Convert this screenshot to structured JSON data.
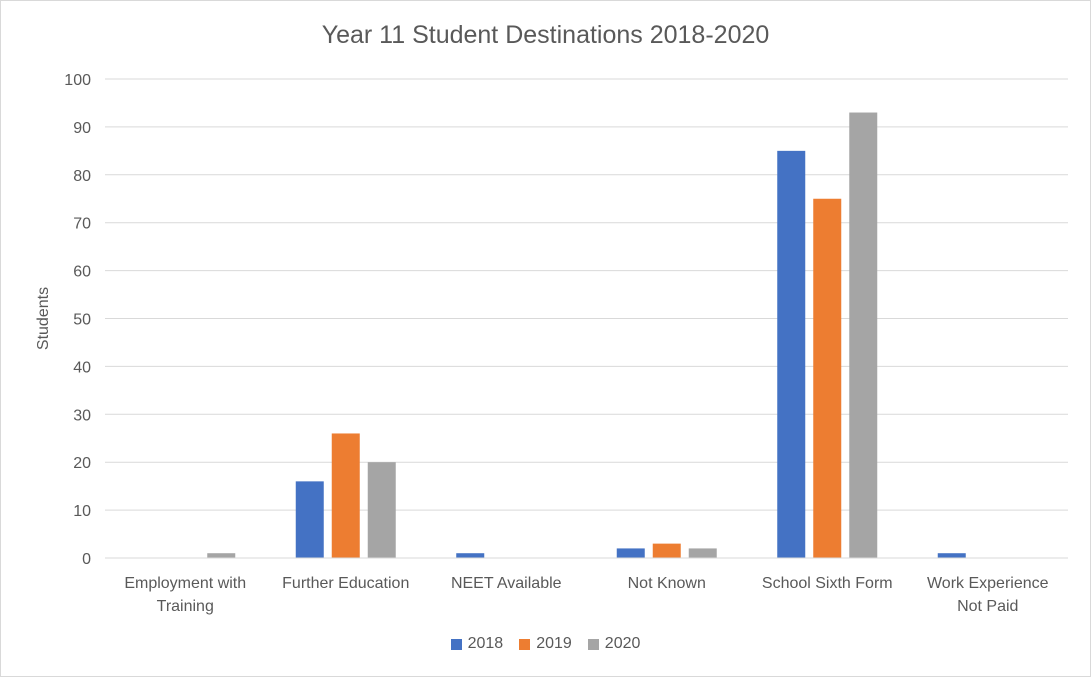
{
  "chart_data": {
    "type": "bar",
    "title": "Year 11 Student Destinations 2018-2020",
    "xlabel": "",
    "ylabel": "Students",
    "ylim": [
      0,
      100
    ],
    "yticks": [
      "0",
      "10",
      "20",
      "30",
      "40",
      "50",
      "60",
      "70",
      "80",
      "90",
      "100"
    ],
    "grid": true,
    "legend_position": "bottom",
    "categories": [
      [
        "Employment with",
        "Training"
      ],
      [
        "Further Education"
      ],
      [
        "NEET Available"
      ],
      [
        "Not Known"
      ],
      [
        "School Sixth Form"
      ],
      [
        "Work Experience",
        "Not Paid"
      ]
    ],
    "series": [
      {
        "name": "2018",
        "color": "#4472c4",
        "values": [
          0,
          16,
          1,
          2,
          85,
          1
        ]
      },
      {
        "name": "2019",
        "color": "#ed7d31",
        "values": [
          0,
          26,
          0,
          3,
          75,
          0
        ]
      },
      {
        "name": "2020",
        "color": "#a5a5a5",
        "values": [
          1,
          20,
          0,
          2,
          93,
          0
        ]
      }
    ]
  }
}
